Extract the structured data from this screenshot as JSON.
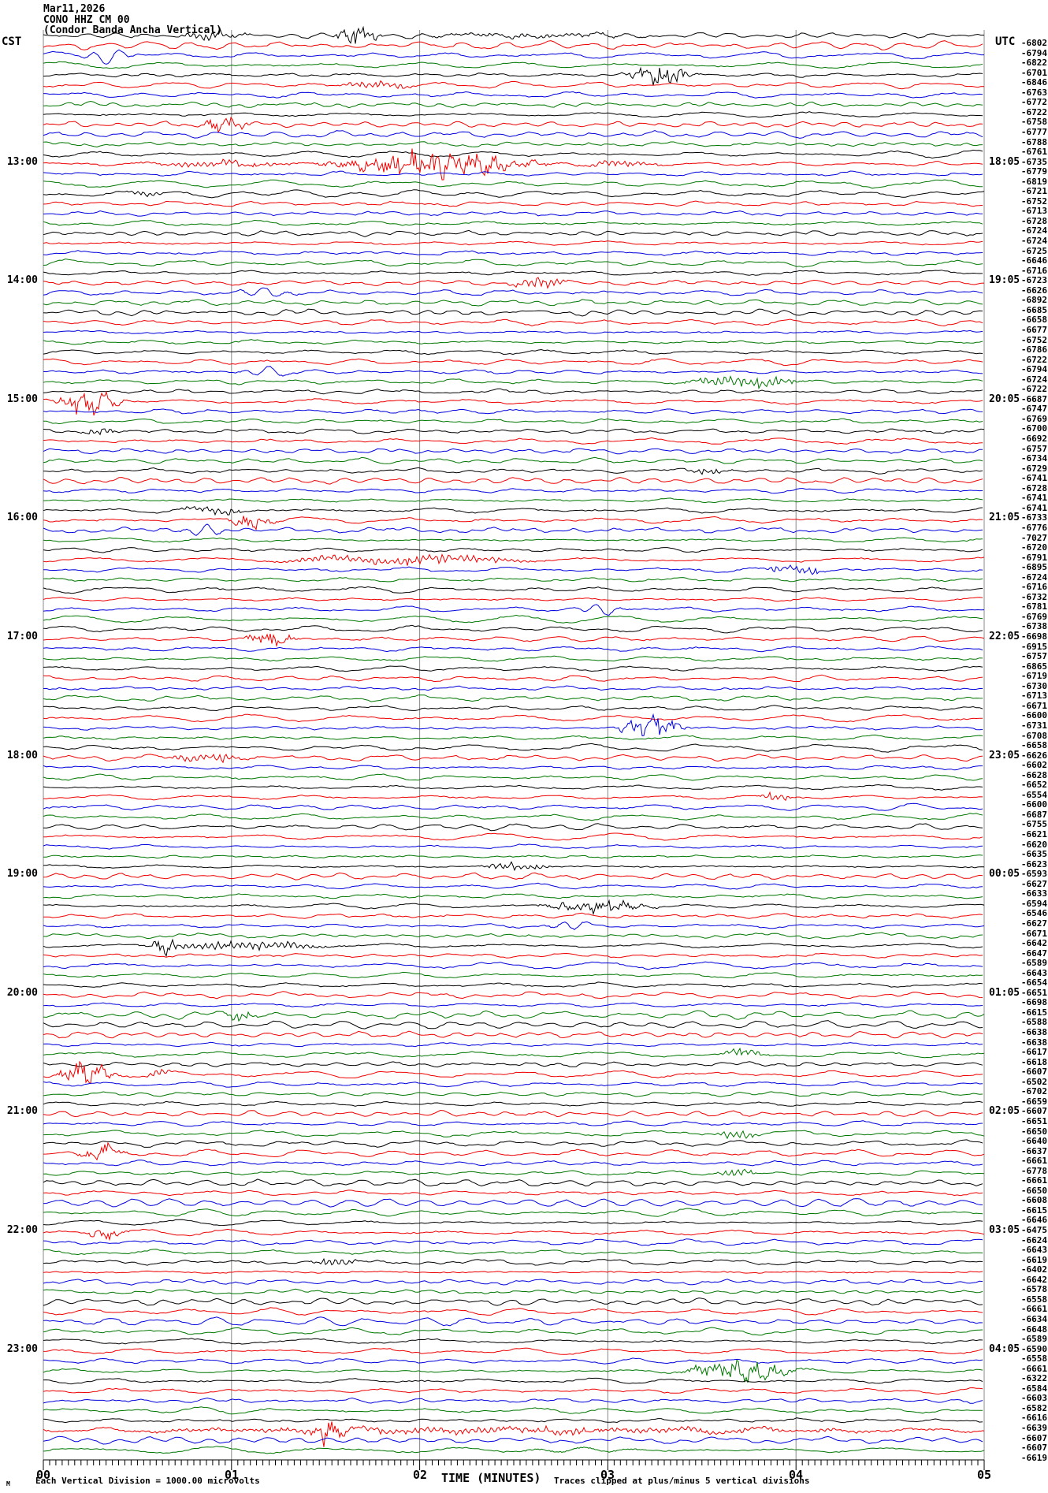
{
  "header": {
    "date": "Mar11,2026",
    "station": "CONO HHZ CM 00",
    "description": "(Condor Banda Ancha Vertical)"
  },
  "left_axis": {
    "timezone": "CST",
    "labels": [
      {
        "row": 12,
        "text": "13:00"
      },
      {
        "row": 24,
        "text": "14:00"
      },
      {
        "row": 36,
        "text": "15:00"
      },
      {
        "row": 48,
        "text": "16:00"
      },
      {
        "row": 60,
        "text": "17:00"
      },
      {
        "row": 72,
        "text": "18:00"
      },
      {
        "row": 84,
        "text": "19:00"
      },
      {
        "row": 96,
        "text": "20:00"
      },
      {
        "row": 108,
        "text": "21:00"
      },
      {
        "row": 120,
        "text": "22:00"
      },
      {
        "row": 132,
        "text": "23:00"
      }
    ]
  },
  "right_axis": {
    "timezone": "UTC",
    "labels": [
      {
        "row": 12,
        "text": "18:05"
      },
      {
        "row": 24,
        "text": "19:05"
      },
      {
        "row": 36,
        "text": "20:05"
      },
      {
        "row": 48,
        "text": "21:05"
      },
      {
        "row": 60,
        "text": "22:05"
      },
      {
        "row": 72,
        "text": "23:05"
      },
      {
        "row": 84,
        "text": "00:05"
      },
      {
        "row": 96,
        "text": "01:05"
      },
      {
        "row": 108,
        "text": "02:05"
      },
      {
        "row": 120,
        "text": "03:05"
      },
      {
        "row": 132,
        "text": "04:05"
      }
    ]
  },
  "x_axis": {
    "title": "TIME (MINUTES)",
    "ticks": [
      "00",
      "01",
      "02",
      "03",
      "04",
      "05"
    ]
  },
  "footer": {
    "scale_mark": "M",
    "scale_note": "Each Vertical Division = 1000.00 microvolts",
    "clip_note": "Traces clipped at plus/minus 5 vertical divisions"
  },
  "chart_data": {
    "type": "line",
    "variant": "helicorder-seismogram",
    "title": "CONO HHZ CM 00 (Condor Banda Ancha Vertical) Mar11,2026",
    "xlabel": "TIME (MINUTES)",
    "x_range_minutes": [
      0,
      5
    ],
    "minutes_per_line": 5,
    "lines": 144,
    "first_line_cst": "12:00",
    "last_line_cst": "23:55",
    "color_cycle": [
      "#000000",
      "#ee0000",
      "#0000dd",
      "#007700"
    ],
    "grid_color": "#888888",
    "row_offsets_microvolts": [
      -6802,
      -6794,
      -6822,
      -6701,
      -6846,
      -6763,
      -6772,
      -6722,
      -6758,
      -6777,
      -6788,
      -6761,
      -6735,
      -6779,
      -6819,
      -6721,
      -6752,
      -6713,
      -6728,
      -6724,
      -6724,
      -6725,
      -6646,
      -6716,
      -6723,
      -6626,
      -6892,
      -6685,
      -6658,
      -6677,
      -6752,
      -6786,
      -6722,
      -6794,
      -6724,
      -6722,
      -6687,
      -6747,
      -6769,
      -6700,
      -6692,
      -6757,
      -6734,
      -6729,
      -6741,
      -6728,
      -6741,
      -6741,
      -6733,
      -6776,
      -7027,
      -6720,
      -6791,
      -6895,
      -6724,
      -6716,
      -6732,
      -6781,
      -6769,
      -6738,
      -6698,
      -6915,
      -6757,
      -6865,
      -6719,
      -6730,
      -6713,
      -6671,
      -6600,
      -6731,
      -6708,
      -6658,
      -6626,
      -6602,
      -6628,
      -6652,
      -6554,
      -6600,
      -6687,
      -6755,
      -6621,
      -6620,
      -6635,
      -6623,
      -6593,
      -6627,
      -6633,
      -6594,
      -6546,
      -6627,
      -6671,
      -6642,
      -6647,
      -6589,
      -6643,
      -6654,
      -6651,
      -6698,
      -6615,
      -6588,
      -6638,
      -6638,
      -6617,
      -6618,
      -6607,
      -6502,
      -6702,
      -6659,
      -6607,
      -6651,
      -6650,
      -6640,
      -6637,
      -6661,
      -6778,
      -6661,
      -6650,
      -6608,
      -6615,
      -6646,
      -6475,
      -6624,
      -6643,
      -6619,
      -6402,
      -6642,
      -6578,
      -6558,
      -6661,
      -6634,
      -6648,
      -6589,
      -6590,
      -6558,
      -6661,
      -6322,
      -6584,
      -6603,
      -6582,
      -6616,
      -6639,
      -6607,
      -6607,
      -6619
    ],
    "events": [
      {
        "row": 0,
        "x0": 0.7,
        "x1": 1.1,
        "amp": 7,
        "kind": "b"
      },
      {
        "row": 0,
        "x0": 1.52,
        "x1": 1.82,
        "amp": 14,
        "kind": "s"
      },
      {
        "row": 0,
        "x0": 1.95,
        "x1": 3.2,
        "amp": 2.5,
        "kind": "b"
      },
      {
        "row": 2,
        "x0": 0.18,
        "x1": 0.52,
        "amp": 10,
        "kind": "w"
      },
      {
        "row": 4,
        "x0": 3.05,
        "x1": 3.5,
        "amp": 11,
        "kind": "s"
      },
      {
        "row": 5,
        "x0": 1.55,
        "x1": 2.0,
        "amp": 5,
        "kind": "b"
      },
      {
        "row": 9,
        "x0": 0.82,
        "x1": 1.12,
        "amp": 10,
        "kind": "s"
      },
      {
        "row": 13,
        "x0": 0.45,
        "x1": 1.4,
        "amp": 4,
        "kind": "b"
      },
      {
        "row": 13,
        "x0": 1.4,
        "x1": 2.75,
        "amp": 16,
        "kind": "s"
      },
      {
        "row": 13,
        "x0": 2.75,
        "x1": 3.35,
        "amp": 4,
        "kind": "b"
      },
      {
        "row": 16,
        "x0": 0.42,
        "x1": 0.64,
        "amp": 5,
        "kind": "b"
      },
      {
        "row": 25,
        "x0": 2.45,
        "x1": 2.82,
        "amp": 7,
        "kind": "b"
      },
      {
        "row": 26,
        "x0": 1.0,
        "x1": 1.35,
        "amp": 6,
        "kind": "w"
      },
      {
        "row": 34,
        "x0": 1.0,
        "x1": 1.35,
        "amp": 6,
        "kind": "w"
      },
      {
        "row": 35,
        "x0": 3.35,
        "x1": 4.1,
        "amp": 8,
        "kind": "b"
      },
      {
        "row": 37,
        "x0": 0.02,
        "x1": 0.48,
        "amp": 15,
        "kind": "s"
      },
      {
        "row": 40,
        "x0": 0.18,
        "x1": 0.42,
        "amp": 6,
        "kind": "b"
      },
      {
        "row": 44,
        "x0": 3.4,
        "x1": 3.66,
        "amp": 4,
        "kind": "b"
      },
      {
        "row": 48,
        "x0": 0.68,
        "x1": 1.12,
        "amp": 6,
        "kind": "b"
      },
      {
        "row": 49,
        "x0": 0.95,
        "x1": 1.25,
        "amp": 8,
        "kind": "s"
      },
      {
        "row": 50,
        "x0": 0.72,
        "x1": 1.0,
        "amp": 6,
        "kind": "w"
      },
      {
        "row": 53,
        "x0": 1.15,
        "x1": 2.7,
        "amp": 7,
        "kind": "b"
      },
      {
        "row": 54,
        "x0": 3.8,
        "x1": 4.18,
        "amp": 8,
        "kind": "b"
      },
      {
        "row": 58,
        "x0": 2.8,
        "x1": 3.12,
        "amp": 7,
        "kind": "w"
      },
      {
        "row": 61,
        "x0": 1.05,
        "x1": 1.36,
        "amp": 9,
        "kind": "s"
      },
      {
        "row": 70,
        "x0": 3.0,
        "x1": 3.48,
        "amp": 14,
        "kind": "s"
      },
      {
        "row": 73,
        "x0": 0.6,
        "x1": 1.15,
        "amp": 6,
        "kind": "b"
      },
      {
        "row": 77,
        "x0": 3.78,
        "x1": 4.0,
        "amp": 6,
        "kind": "b"
      },
      {
        "row": 84,
        "x0": 2.3,
        "x1": 2.72,
        "amp": 6,
        "kind": "b"
      },
      {
        "row": 88,
        "x0": 2.6,
        "x1": 3.3,
        "amp": 8,
        "kind": "s"
      },
      {
        "row": 90,
        "x0": 2.65,
        "x1": 2.95,
        "amp": 6,
        "kind": "w"
      },
      {
        "row": 92,
        "x0": 0.5,
        "x1": 1.6,
        "amp": 6,
        "kind": "b"
      },
      {
        "row": 92,
        "x0": 0.56,
        "x1": 0.74,
        "amp": 12,
        "kind": "s"
      },
      {
        "row": 99,
        "x0": 0.95,
        "x1": 1.16,
        "amp": 6,
        "kind": "b"
      },
      {
        "row": 103,
        "x0": 3.6,
        "x1": 3.86,
        "amp": 6,
        "kind": "b"
      },
      {
        "row": 105,
        "x0": 0.05,
        "x1": 0.42,
        "amp": 16,
        "kind": "s"
      },
      {
        "row": 105,
        "x0": 0.52,
        "x1": 0.7,
        "amp": 6,
        "kind": "b"
      },
      {
        "row": 111,
        "x0": 3.55,
        "x1": 3.82,
        "amp": 6,
        "kind": "b"
      },
      {
        "row": 113,
        "x0": 0.15,
        "x1": 0.46,
        "amp": 9,
        "kind": "s"
      },
      {
        "row": 115,
        "x0": 3.55,
        "x1": 3.82,
        "amp": 5,
        "kind": "b"
      },
      {
        "row": 121,
        "x0": 0.22,
        "x1": 0.46,
        "amp": 10,
        "kind": "s"
      },
      {
        "row": 124,
        "x0": 1.4,
        "x1": 1.72,
        "amp": 6,
        "kind": "b"
      },
      {
        "row": 135,
        "x0": 3.35,
        "x1": 4.08,
        "amp": 12,
        "kind": "s"
      },
      {
        "row": 141,
        "x0": 0.0,
        "x1": 5.0,
        "amp": 4,
        "kind": "b"
      },
      {
        "row": 141,
        "x0": 1.38,
        "x1": 1.64,
        "amp": 18,
        "kind": "s"
      },
      {
        "row": 141,
        "x0": 2.4,
        "x1": 3.1,
        "amp": 8,
        "kind": "b"
      },
      {
        "row": 143,
        "x0": 2.5,
        "x1": 3.2,
        "amp": 4,
        "kind": "w"
      }
    ]
  }
}
